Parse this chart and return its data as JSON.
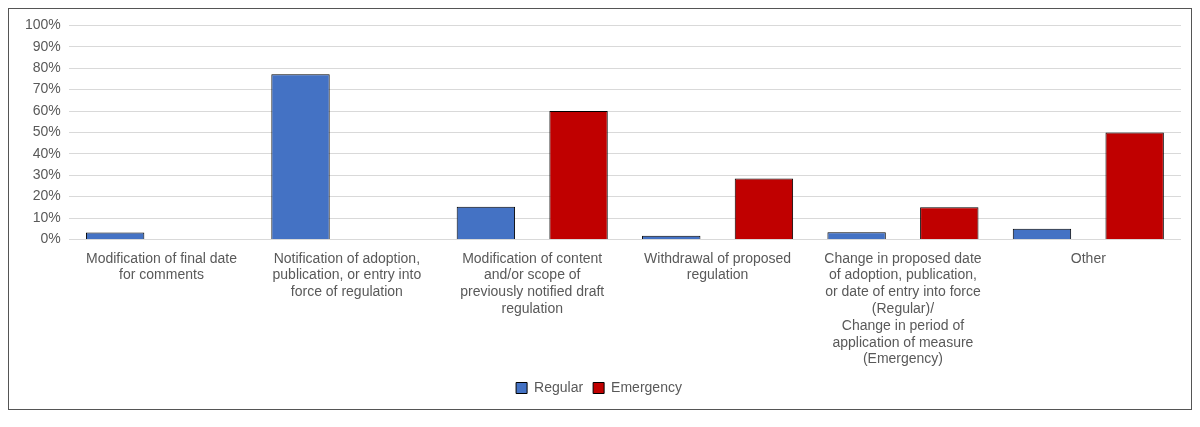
{
  "chart_data": {
    "type": "bar",
    "categories": [
      "Modification of final date for comments",
      "Notification of adoption, publication, or entry into force of regulation",
      "Modification of content and/or scope of previously notified draft regulation",
      "Withdrawal of proposed regulation",
      "Change in proposed date of adoption, publication, or date of entry into force (Regular)/\nChange in period of application of measure (Emergency)",
      "Other"
    ],
    "series": [
      {
        "name": "Regular",
        "color": "#4472c4",
        "values": [
          3.2,
          77.2,
          15.2,
          1.7,
          3.3,
          5
        ]
      },
      {
        "name": "Emergency",
        "color": "#c00000",
        "values": [
          null,
          null,
          60,
          28.5,
          15,
          50
        ]
      }
    ],
    "ylim": [
      0,
      100
    ],
    "yticks": [
      {
        "value": 0,
        "label": "0%"
      },
      {
        "value": 10,
        "label": "10%"
      },
      {
        "value": 20,
        "label": "20%"
      },
      {
        "value": 30,
        "label": "30%"
      },
      {
        "value": 40,
        "label": "40%"
      },
      {
        "value": 50,
        "label": "50%"
      },
      {
        "value": 60,
        "label": "60%"
      },
      {
        "value": 70,
        "label": "70%"
      },
      {
        "value": 80,
        "label": "80%"
      },
      {
        "value": 90,
        "label": "90%"
      },
      {
        "value": 100,
        "label": "100%"
      }
    ],
    "grid": "y",
    "legend": "bottom"
  }
}
